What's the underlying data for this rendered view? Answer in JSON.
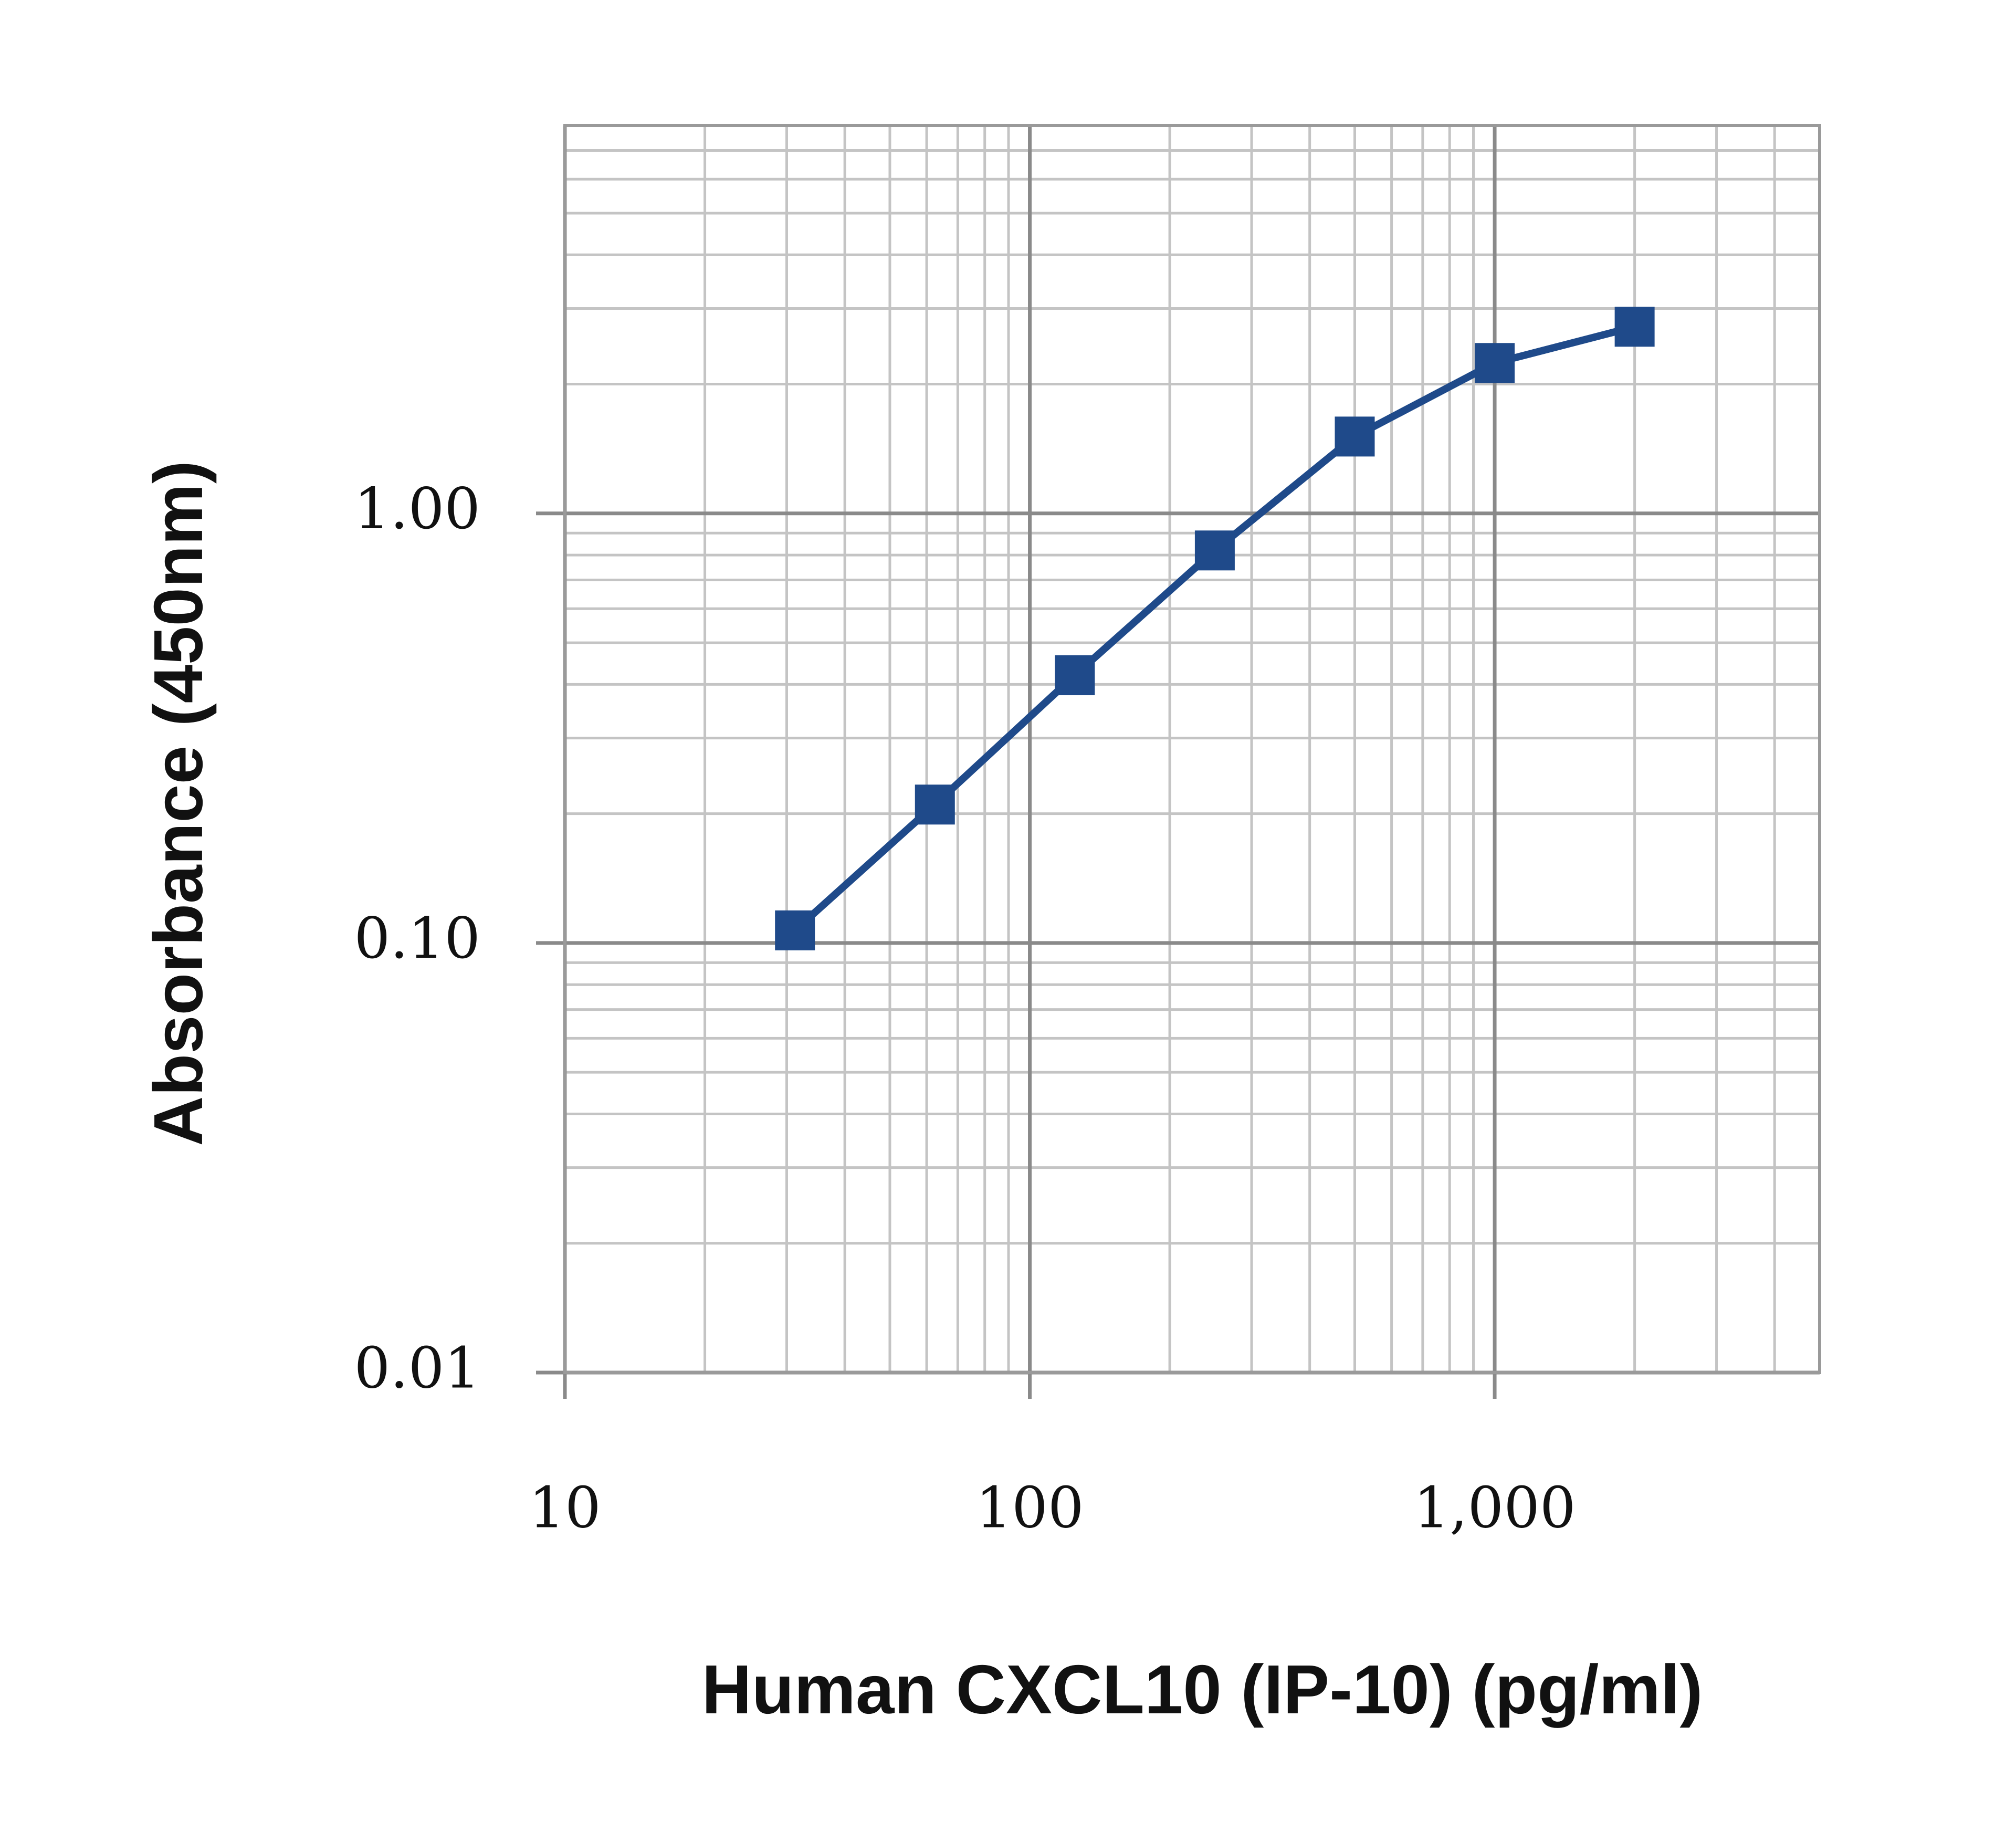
{
  "chart_data": {
    "type": "line",
    "x_label": "Human CXCL10 (IP-10) (pg/ml)",
    "y_label": "Absorbance (450nm)",
    "x": [
      31.25,
      62.5,
      125,
      250,
      500,
      1000,
      2000
    ],
    "values": [
      0.107,
      0.21,
      0.42,
      0.82,
      1.51,
      2.24,
      2.72
    ],
    "color": "#1f4a8a",
    "xlim": [
      10,
      5000
    ],
    "ylim": [
      0.01,
      8
    ],
    "xticks": [
      10,
      100,
      {
        "value": 1000,
        "label": "1,000"
      }
    ],
    "yticks": [
      0.01,
      {
        "value": 0.1,
        "label": "0.10"
      },
      {
        "value": 1,
        "label": "1.00"
      }
    ],
    "xlog": true,
    "ylog": true,
    "grid": true,
    "minor_grid": true,
    "marker": "square"
  }
}
